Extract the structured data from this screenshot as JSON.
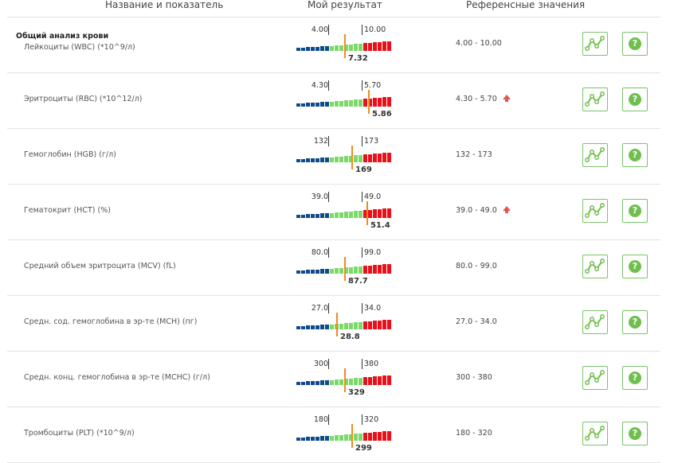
{
  "header": {
    "name_col": "Название и показатель",
    "result_col": "Мой результат",
    "ref_col": "Референсные значения"
  },
  "group_title": "Общий анализ крови",
  "colors": {
    "low": "#0f4a8a",
    "normal": "#7bd96a",
    "high": "#e8101a",
    "marker": "#f28a1e",
    "button_border": "#7ac36a"
  },
  "icons": {
    "chart_button": "line-chart-icon",
    "help_button": "question-icon",
    "flag": "up-arrow-icon"
  },
  "tests": [
    {
      "name": "Лейкоциты (WBC) (*10^9/л)",
      "low": "4.00",
      "high": "10.00",
      "value": "7.32",
      "position": 0.49,
      "ref": "4.00 - 10.00",
      "flag": false
    },
    {
      "name": "Эритроциты (RBC) (*10^12/л)",
      "low": "4.30",
      "high": "5.70",
      "value": "5.86",
      "position": 0.73,
      "ref": "4.30 - 5.70",
      "flag": true
    },
    {
      "name": "Гемоглобин (HGB) (г/л)",
      "low": "132",
      "high": "173",
      "value": "169",
      "position": 0.56,
      "ref": "132 - 173",
      "flag": false
    },
    {
      "name": "Гематокрит (HCT) (%)",
      "low": "39.0",
      "high": "49.0",
      "value": "51.4",
      "position": 0.71,
      "ref": "39.0 - 49.0",
      "flag": true
    },
    {
      "name": "Средний объем эритроцита (MCV) (fL)",
      "low": "80.0",
      "high": "99.0",
      "value": "87.7",
      "position": 0.49,
      "ref": "80.0 - 99.0",
      "flag": false
    },
    {
      "name": "Средн. сод. гемоглобина в эр-те (MCH) (пг)",
      "low": "27.0",
      "high": "34.0",
      "value": "28.8",
      "position": 0.41,
      "ref": "27.0 - 34.0",
      "flag": false
    },
    {
      "name": "Средн. конц. гемоглобина в эр-те (MCHC) (г/л)",
      "low": "300",
      "high": "380",
      "value": "329",
      "position": 0.49,
      "ref": "300 - 380",
      "flag": false
    },
    {
      "name": "Тромбоциты (PLT) (*10^9/л)",
      "low": "180",
      "high": "320",
      "value": "299",
      "position": 0.56,
      "ref": "180 - 320",
      "flag": false
    }
  ]
}
